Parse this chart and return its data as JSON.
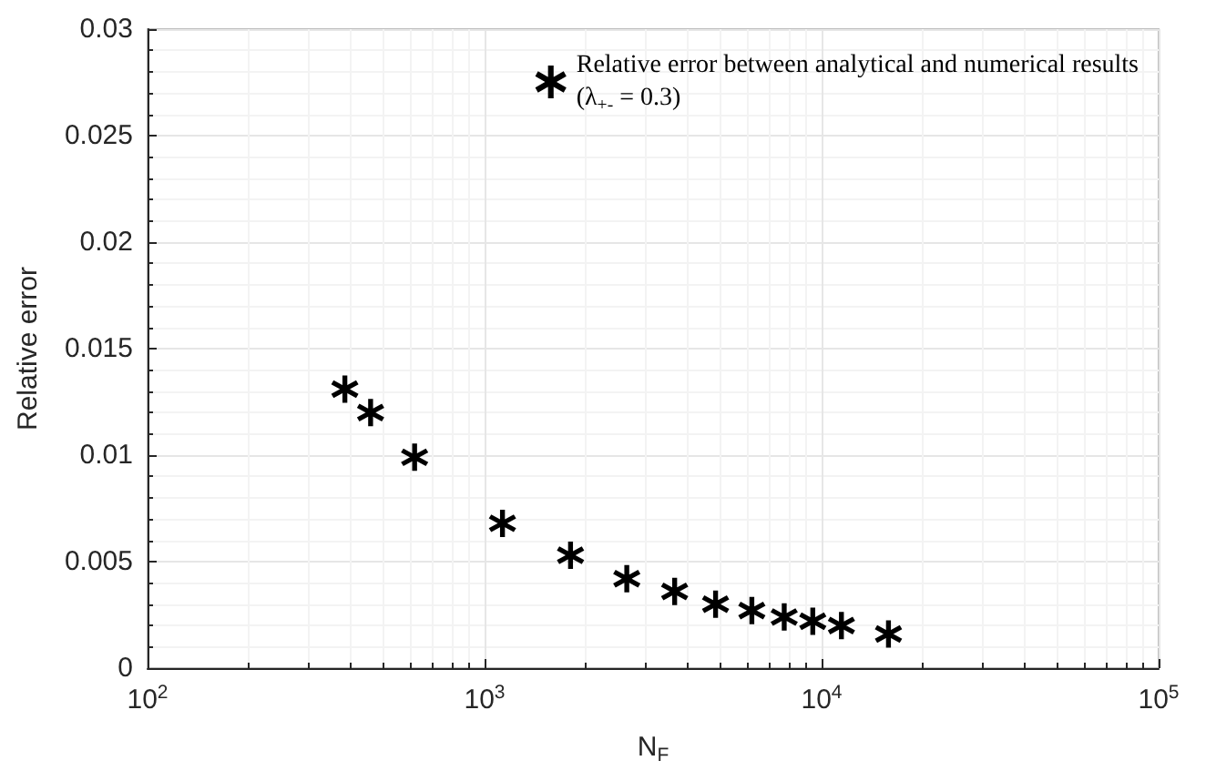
{
  "chart_data": {
    "type": "scatter",
    "xlabel": "N$_{F}$",
    "ylabel": "Relative error",
    "x": [
      385,
      459,
      620,
      1130,
      1799,
      2642,
      3664,
      4846,
      6209,
      7746,
      9415,
      11450,
      15790
    ],
    "series": [
      {
        "name": "Relative error between analytical and numerical results\n(λ$_{+-}$ = 0.3)",
        "color": "#000000",
        "values": [
          0.0131,
          0.012,
          0.0099,
          0.0068,
          0.0053,
          0.0042,
          0.0036,
          0.003,
          0.0027,
          0.0024,
          0.0022,
          0.002,
          0.0016
        ]
      }
    ],
    "log": "x",
    "xlim": [
      100,
      100000
    ],
    "xticks": [
      {
        "value": 100,
        "label": "10$^{2}$"
      },
      {
        "value": 1000,
        "label": "10$^{3}$"
      },
      {
        "value": 10000,
        "label": "10$^{4}$"
      },
      {
        "value": 100000,
        "label": "10$^{5}$"
      }
    ],
    "ylim": [
      0,
      0.03
    ],
    "yticks": [
      0,
      0.005,
      0.01,
      0.015,
      0.02,
      0.025,
      0.03
    ],
    "grid": true,
    "legend": "top right",
    "marker": "cross"
  }
}
